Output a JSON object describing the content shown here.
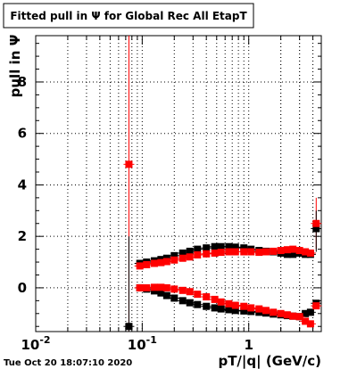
{
  "title": "Fitted pull in Ψ for Global Rec All EtapT",
  "footer_timestamp": "Tue Oct 20 18:07:10 2020",
  "colors": {
    "series_black": "#000000",
    "series_red": "#ff0000",
    "grid": "#000000",
    "frame": "#000000"
  },
  "chart_data": {
    "type": "scatter",
    "title": "Fitted pull in Ψ for Global Rec All EtapT",
    "xlabel": "pT/|q| (GeV/c)",
    "ylabel": "pull in Ψ",
    "x_scale": "log",
    "xlim": [
      0.01,
      4.8
    ],
    "ylim": [
      -1.7,
      9.8
    ],
    "grid": true,
    "x_ticks": [
      {
        "value": 0.01,
        "base": "10",
        "exp": "-2"
      },
      {
        "value": 0.1,
        "base": "10",
        "exp": "-1"
      },
      {
        "value": 1,
        "base": "1",
        "exp": ""
      }
    ],
    "y_ticks": [
      0,
      2,
      4,
      6,
      8
    ],
    "series": [
      {
        "color": "#000000",
        "marker": "square",
        "x": [
          0.075,
          0.095,
          0.11,
          0.13,
          0.15,
          0.17,
          0.2,
          0.24,
          0.28,
          0.33,
          0.4,
          0.48,
          0.55,
          0.65,
          0.75,
          0.9,
          1.05,
          1.25,
          1.45,
          1.7,
          2.0,
          2.3,
          2.6,
          3.0,
          3.4,
          3.8,
          4.3
        ],
        "y": [
          -1.5,
          0.95,
          1.0,
          1.05,
          1.1,
          1.15,
          1.25,
          1.35,
          1.42,
          1.5,
          1.55,
          1.6,
          1.6,
          1.6,
          1.58,
          1.55,
          1.5,
          1.45,
          1.42,
          1.4,
          1.35,
          1.3,
          1.3,
          1.35,
          1.3,
          1.3,
          2.3
        ]
      },
      {
        "color": "#000000",
        "marker": "square",
        "x": [
          0.095,
          0.11,
          0.13,
          0.15,
          0.17,
          0.2,
          0.24,
          0.28,
          0.33,
          0.4,
          0.48,
          0.55,
          0.65,
          0.75,
          0.9,
          1.05,
          1.25,
          1.45,
          1.7,
          2.0,
          2.3,
          2.6,
          3.0,
          3.4,
          3.8,
          4.3
        ],
        "y": [
          0.0,
          -0.05,
          -0.12,
          -0.2,
          -0.3,
          -0.4,
          -0.5,
          -0.58,
          -0.65,
          -0.72,
          -0.78,
          -0.82,
          -0.85,
          -0.88,
          -0.9,
          -0.92,
          -0.95,
          -0.98,
          -1.02,
          -1.05,
          -1.08,
          -1.1,
          -1.12,
          -1.0,
          -0.95,
          -0.6
        ]
      },
      {
        "color": "#ff0000",
        "marker": "square",
        "x": [
          0.075,
          0.095,
          0.11,
          0.13,
          0.15,
          0.17,
          0.2,
          0.24,
          0.28,
          0.33,
          0.4,
          0.48,
          0.55,
          0.65,
          0.75,
          0.9,
          1.05,
          1.25,
          1.45,
          1.7,
          2.0,
          2.3,
          2.6,
          3.0,
          3.4,
          3.8,
          4.3
        ],
        "y": [
          4.8,
          0.85,
          0.9,
          0.95,
          0.98,
          1.02,
          1.08,
          1.15,
          1.2,
          1.28,
          1.32,
          1.35,
          1.38,
          1.4,
          1.4,
          1.4,
          1.4,
          1.38,
          1.4,
          1.42,
          1.45,
          1.48,
          1.5,
          1.45,
          1.4,
          1.35,
          2.5
        ]
      },
      {
        "color": "#ff0000",
        "marker": "square",
        "x": [
          0.095,
          0.11,
          0.13,
          0.15,
          0.17,
          0.2,
          0.24,
          0.28,
          0.33,
          0.4,
          0.48,
          0.55,
          0.65,
          0.75,
          0.9,
          1.05,
          1.25,
          1.45,
          1.7,
          2.0,
          2.3,
          2.6,
          3.0,
          3.4,
          3.8,
          4.3
        ],
        "y": [
          0.0,
          0.0,
          0.02,
          0.02,
          0.0,
          -0.05,
          -0.1,
          -0.15,
          -0.25,
          -0.35,
          -0.45,
          -0.55,
          -0.62,
          -0.68,
          -0.72,
          -0.78,
          -0.82,
          -0.88,
          -0.95,
          -1.0,
          -1.05,
          -1.1,
          -1.12,
          -1.3,
          -1.4,
          -0.7
        ]
      }
    ],
    "error_bars": [
      {
        "color": "#ff0000",
        "x": 0.075,
        "y_low": -1.7,
        "y_high": 9.8
      },
      {
        "color": "#000000",
        "x": 0.075,
        "y_low": -1.7,
        "y_high": 2.0
      },
      {
        "color": "#ff0000",
        "x": 4.3,
        "y_low": 1.5,
        "y_high": 3.5
      },
      {
        "color": "#000000",
        "x": 4.3,
        "y_low": 1.4,
        "y_high": 3.0
      }
    ]
  }
}
